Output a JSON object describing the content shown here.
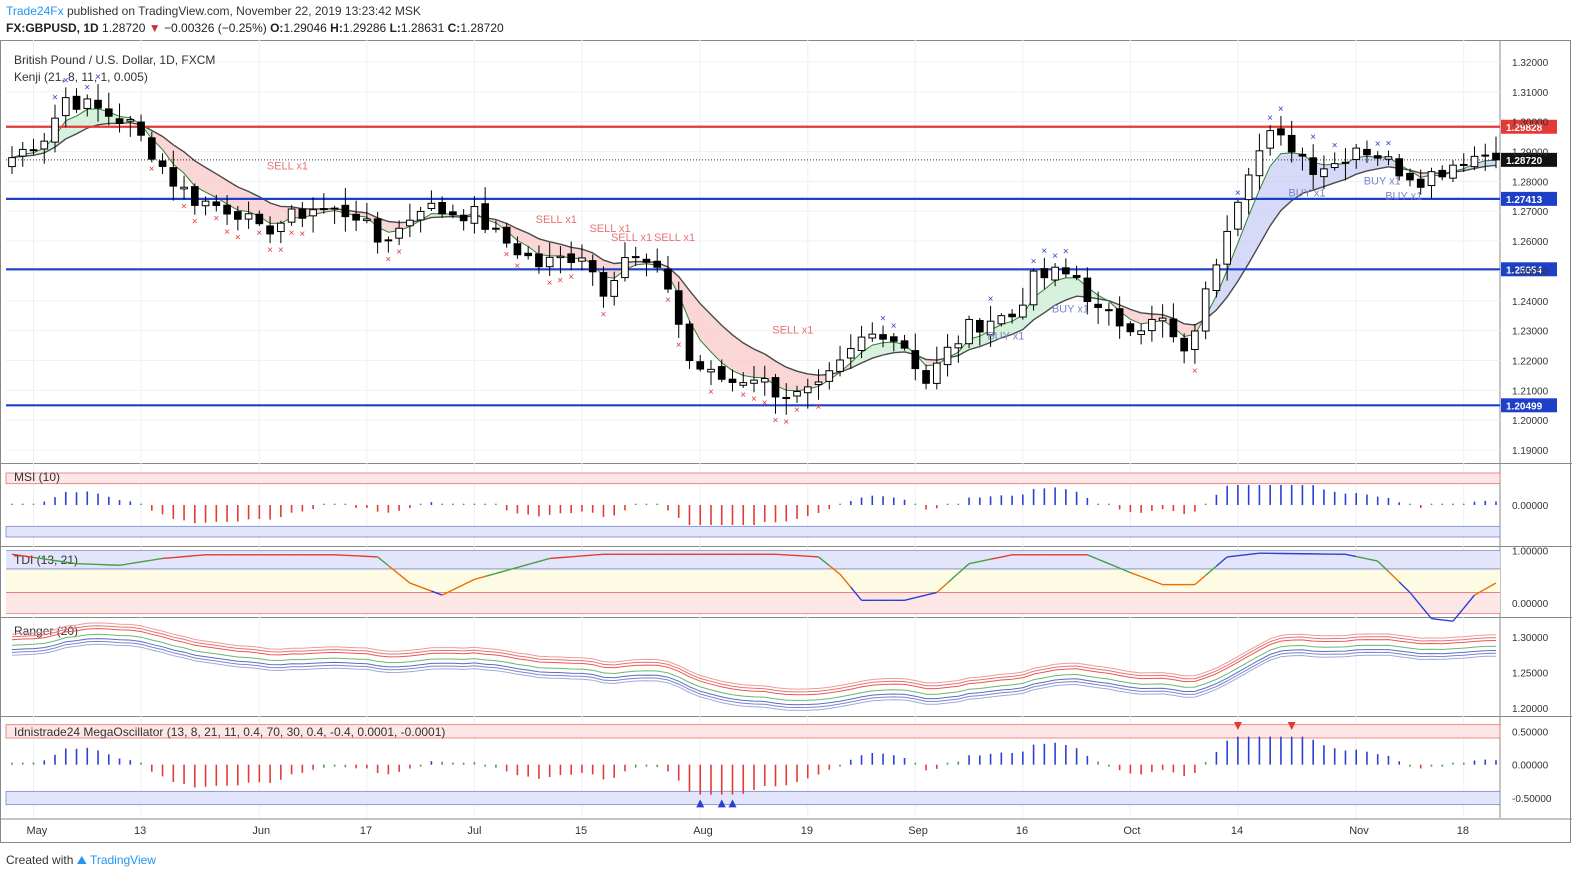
{
  "header": {
    "author": "Trade24Fx",
    "published_text": "published on TradingView.com, November 22, 2019 13:23:42 MSK"
  },
  "quote": {
    "symbol": "FX:GBPUSD, 1D",
    "last": "1.28720",
    "change": "−0.00326 (−0.25%)",
    "o_label": "O:",
    "o": "1.29046",
    "h_label": "H:",
    "h": "1.29286",
    "l_label": "L:",
    "l": "1.28631",
    "c_label": "C:",
    "c": "1.28720"
  },
  "footer": {
    "created_with": "Created with",
    "brand": "TradingView"
  },
  "chart_data": [
    {
      "type": "candlestick",
      "title": "British Pound / U.S. Dollar, 1D, FXCM",
      "indicator_label": "Kenji (21, 8, 11, 1, 0.005)",
      "ylim": [
        1.186,
        1.326
      ],
      "y_ticks": [
        "1.19000",
        "1.20000",
        "1.21000",
        "1.22000",
        "1.23000",
        "1.24000",
        "1.25000",
        "1.26000",
        "1.27000",
        "1.28000",
        "1.29000",
        "1.30000",
        "1.31000",
        "1.32000"
      ],
      "x_ticks": [
        "May",
        "13",
        "Jun",
        "17",
        "Jul",
        "15",
        "Aug",
        "19",
        "Sep",
        "16",
        "Oct",
        "14",
        "Nov",
        "18"
      ],
      "x_tick_index": [
        2,
        12,
        23,
        33,
        43,
        53,
        64,
        74,
        84,
        94,
        104,
        114,
        125,
        135
      ],
      "n_bars": 139,
      "close_anchors": [
        [
          0,
          1.288
        ],
        [
          3,
          1.295
        ],
        [
          5,
          1.308
        ],
        [
          8,
          1.304
        ],
        [
          11,
          1.299
        ],
        [
          13,
          1.29
        ],
        [
          15,
          1.28
        ],
        [
          17,
          1.274
        ],
        [
          19,
          1.272
        ],
        [
          21,
          1.27
        ],
        [
          23,
          1.263
        ],
        [
          26,
          1.268
        ],
        [
          28,
          1.271
        ],
        [
          30,
          1.27
        ],
        [
          32,
          1.269
        ],
        [
          34,
          1.26
        ],
        [
          36,
          1.264
        ],
        [
          38,
          1.272
        ],
        [
          40,
          1.27
        ],
        [
          43,
          1.269
        ],
        [
          45,
          1.262
        ],
        [
          47,
          1.257
        ],
        [
          49,
          1.252
        ],
        [
          51,
          1.254
        ],
        [
          53,
          1.256
        ],
        [
          55,
          1.244
        ],
        [
          57,
          1.255
        ],
        [
          59,
          1.252
        ],
        [
          61,
          1.245
        ],
        [
          63,
          1.22
        ],
        [
          65,
          1.215
        ],
        [
          67,
          1.213
        ],
        [
          69,
          1.215
        ],
        [
          71,
          1.21
        ],
        [
          73,
          1.208
        ],
        [
          75,
          1.21
        ],
        [
          77,
          1.218
        ],
        [
          79,
          1.227
        ],
        [
          81,
          1.23
        ],
        [
          83,
          1.225
        ],
        [
          85,
          1.213
        ],
        [
          87,
          1.223
        ],
        [
          89,
          1.231
        ],
        [
          91,
          1.234
        ],
        [
          93,
          1.235
        ],
        [
          95,
          1.247
        ],
        [
          97,
          1.249
        ],
        [
          99,
          1.248
        ],
        [
          101,
          1.236
        ],
        [
          103,
          1.233
        ],
        [
          105,
          1.232
        ],
        [
          107,
          1.233
        ],
        [
          109,
          1.221
        ],
        [
          111,
          1.242
        ],
        [
          113,
          1.266
        ],
        [
          115,
          1.285
        ],
        [
          117,
          1.295
        ],
        [
          119,
          1.292
        ],
        [
          121,
          1.285
        ],
        [
          123,
          1.286
        ],
        [
          125,
          1.292
        ],
        [
          127,
          1.289
        ],
        [
          129,
          1.284
        ],
        [
          131,
          1.281
        ],
        [
          133,
          1.284
        ],
        [
          135,
          1.288
        ],
        [
          137,
          1.289
        ],
        [
          138,
          1.2872
        ]
      ],
      "last_close": 1.2872,
      "horizontal_levels": [
        {
          "value": 1.29828,
          "label": "1.29828",
          "color": "#e53935"
        },
        {
          "value": 1.27413,
          "label": "1.27413",
          "color": "#1e40c8"
        },
        {
          "value": 1.25054,
          "label": "1.25054",
          "color": "#1e40c8"
        },
        {
          "value": 1.20499,
          "label": "1.20499",
          "color": "#1e40c8"
        }
      ],
      "last_price_label": "1.28720",
      "annotations": [
        {
          "text": "SELL x1",
          "bar": 25,
          "price": 1.284
        },
        {
          "text": "SELL x1",
          "bar": 50,
          "price": 1.266
        },
        {
          "text": "SELL x1",
          "bar": 55,
          "price": 1.263
        },
        {
          "text": "SELL x1",
          "bar": 57,
          "price": 1.26
        },
        {
          "text": "SELL x1",
          "bar": 61,
          "price": 1.26
        },
        {
          "text": "SELL x1",
          "bar": 72,
          "price": 1.229
        },
        {
          "text": "BUY x1",
          "bar": 92,
          "price": 1.227
        },
        {
          "text": "BUY x1",
          "bar": 98,
          "price": 1.236
        },
        {
          "text": "BUY x1",
          "bar": 120,
          "price": 1.275
        },
        {
          "text": "BUY x1",
          "bar": 127,
          "price": 1.279
        },
        {
          "text": "BUY x1",
          "bar": 129,
          "price": 1.274
        }
      ],
      "colors": {
        "up": "#ffffff",
        "down": "#000000",
        "resistance": "#e53935",
        "support": "#1e40c8",
        "bear_cloud": "#f8c8c8",
        "bull_cloud": "#c8ccf4",
        "green_cloud": "#c8ecd0"
      }
    },
    {
      "type": "histogram",
      "title": "MSI (10)",
      "ylim": [
        -0.06,
        0.06
      ],
      "y_ticks": [
        "0.00000"
      ],
      "colors": {
        "pos": "#2a3fd6",
        "neg": "#e53935",
        "flat": "#43a047"
      }
    },
    {
      "type": "line",
      "title": "TDI (13, 21)",
      "ylim": [
        -0.25,
        1.05
      ],
      "y_ticks": [
        "1.00000",
        "0.00000"
      ],
      "anchors": [
        [
          0,
          0.93
        ],
        [
          6,
          0.75
        ],
        [
          10,
          0.72
        ],
        [
          14,
          0.85
        ],
        [
          18,
          0.92
        ],
        [
          30,
          0.92
        ],
        [
          34,
          0.88
        ],
        [
          37,
          0.38
        ],
        [
          40,
          0.15
        ],
        [
          43,
          0.45
        ],
        [
          50,
          0.85
        ],
        [
          55,
          0.93
        ],
        [
          71,
          0.93
        ],
        [
          75,
          0.88
        ],
        [
          77,
          0.55
        ],
        [
          79,
          0.05
        ],
        [
          83,
          0.05
        ],
        [
          86,
          0.2
        ],
        [
          89,
          0.75
        ],
        [
          93,
          0.92
        ],
        [
          100,
          0.92
        ],
        [
          104,
          0.58
        ],
        [
          107,
          0.35
        ],
        [
          110,
          0.35
        ],
        [
          113,
          0.88
        ],
        [
          116,
          0.95
        ],
        [
          124,
          0.93
        ],
        [
          127,
          0.8
        ],
        [
          130,
          0.2
        ],
        [
          132,
          -0.3
        ],
        [
          134,
          -0.35
        ],
        [
          136,
          0.15
        ],
        [
          138,
          0.38
        ]
      ]
    },
    {
      "type": "line",
      "title": "Ranger (20)",
      "ylim": [
        1.19,
        1.325
      ],
      "y_ticks": [
        "1.30000",
        "1.25000",
        "1.20000"
      ]
    },
    {
      "type": "histogram",
      "title": "Idnistrade24 MegaOscillator (13, 8, 21, 11, 0.4, 70, 30, 0.4, -0.4, 0.0001, -0.0001)",
      "ylim": [
        -0.8,
        0.7
      ],
      "y_ticks": [
        "0.50000",
        "0.00000",
        "-0.50000"
      ]
    }
  ]
}
